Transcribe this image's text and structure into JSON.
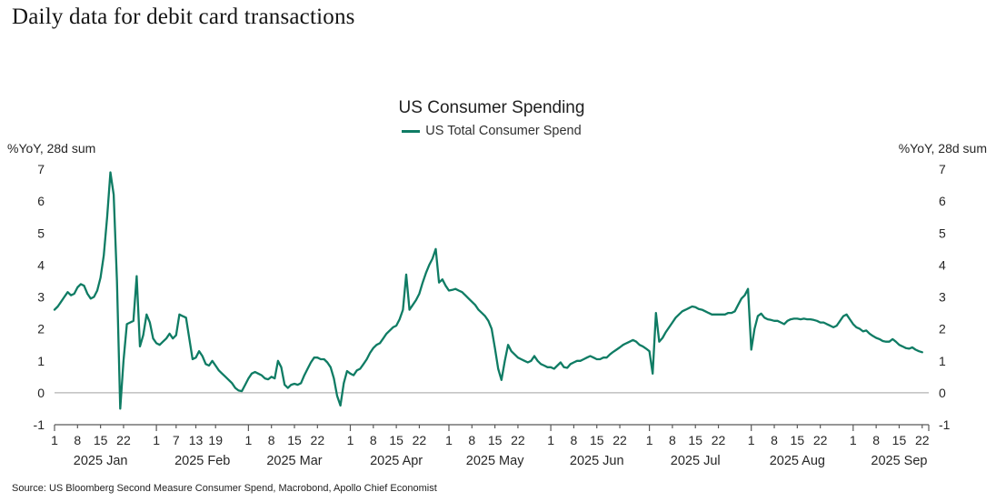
{
  "page": {
    "heading": "Daily data for debit card transactions",
    "source_note": "Source: US Bloomberg Second Measure Consumer Spend, Macrobond, Apollo Chief Economist"
  },
  "chart_data": {
    "type": "line",
    "title": "US Consumer Spending",
    "ylabel_left": "%YoY, 28d sum",
    "ylabel_right": "%YoY, 28d sum",
    "ylim": [
      -1,
      7
    ],
    "yticks": [
      7,
      6,
      5,
      4,
      3,
      2,
      1,
      0,
      -1
    ],
    "x_domain": [
      1,
      267
    ],
    "x_unit": "day-of-year 2025",
    "grid": "horizontal zero line only",
    "legend_position": "top-center",
    "colors": {
      "line": "#0f7c64",
      "zero_line": "#b3b3b3",
      "axis": "#595959",
      "text": "#262626"
    },
    "months": [
      {
        "label": "2025 Jan",
        "start": 1,
        "tick_days": [
          1,
          8,
          15,
          22
        ]
      },
      {
        "label": "2025 Feb",
        "start": 32,
        "tick_days": [
          1,
          7,
          13,
          19
        ]
      },
      {
        "label": "2025 Mar",
        "start": 60,
        "tick_days": [
          1,
          8,
          15,
          22
        ]
      },
      {
        "label": "2025 Apr",
        "start": 91,
        "tick_days": [
          1,
          8,
          15,
          22
        ]
      },
      {
        "label": "2025 May",
        "start": 121,
        "tick_days": [
          1,
          8,
          15,
          22
        ]
      },
      {
        "label": "2025 Jun",
        "start": 152,
        "tick_days": [
          1,
          8,
          15,
          22
        ]
      },
      {
        "label": "2025 Jul",
        "start": 182,
        "tick_days": [
          1,
          8,
          15,
          22
        ]
      },
      {
        "label": "2025 Aug",
        "start": 213,
        "tick_days": [
          1,
          8,
          15,
          22
        ]
      },
      {
        "label": "2025 Sep",
        "start": 244,
        "tick_days": [
          1,
          8,
          15,
          22
        ]
      }
    ],
    "series": [
      {
        "name": "US Total Consumer Spend",
        "color": "#0f7c64",
        "points": [
          [
            1,
            2.6
          ],
          [
            2,
            2.7
          ],
          [
            3,
            2.85
          ],
          [
            4,
            3.0
          ],
          [
            5,
            3.15
          ],
          [
            6,
            3.05
          ],
          [
            7,
            3.1
          ],
          [
            8,
            3.3
          ],
          [
            9,
            3.4
          ],
          [
            10,
            3.35
          ],
          [
            11,
            3.1
          ],
          [
            12,
            2.95
          ],
          [
            13,
            3.0
          ],
          [
            14,
            3.2
          ],
          [
            15,
            3.6
          ],
          [
            16,
            4.3
          ],
          [
            17,
            5.5
          ],
          [
            18,
            6.9
          ],
          [
            19,
            6.2
          ],
          [
            20,
            3.5
          ],
          [
            21,
            -0.5
          ],
          [
            22,
            1.0
          ],
          [
            23,
            2.15
          ],
          [
            24,
            2.2
          ],
          [
            25,
            2.25
          ],
          [
            26,
            3.65
          ],
          [
            27,
            1.45
          ],
          [
            28,
            1.8
          ],
          [
            29,
            2.45
          ],
          [
            30,
            2.2
          ],
          [
            31,
            1.7
          ],
          [
            32,
            1.55
          ],
          [
            33,
            1.5
          ],
          [
            34,
            1.6
          ],
          [
            35,
            1.7
          ],
          [
            36,
            1.85
          ],
          [
            37,
            1.7
          ],
          [
            38,
            1.8
          ],
          [
            39,
            2.45
          ],
          [
            40,
            2.4
          ],
          [
            41,
            2.35
          ],
          [
            42,
            1.7
          ],
          [
            43,
            1.05
          ],
          [
            44,
            1.1
          ],
          [
            45,
            1.3
          ],
          [
            46,
            1.15
          ],
          [
            47,
            0.9
          ],
          [
            48,
            0.85
          ],
          [
            49,
            1.0
          ],
          [
            50,
            0.85
          ],
          [
            51,
            0.7
          ],
          [
            52,
            0.6
          ],
          [
            53,
            0.5
          ],
          [
            54,
            0.4
          ],
          [
            55,
            0.3
          ],
          [
            56,
            0.15
          ],
          [
            57,
            0.07
          ],
          [
            58,
            0.05
          ],
          [
            59,
            0.25
          ],
          [
            60,
            0.45
          ],
          [
            61,
            0.6
          ],
          [
            62,
            0.65
          ],
          [
            63,
            0.6
          ],
          [
            64,
            0.55
          ],
          [
            65,
            0.45
          ],
          [
            66,
            0.42
          ],
          [
            67,
            0.5
          ],
          [
            68,
            0.45
          ],
          [
            69,
            1.0
          ],
          [
            70,
            0.8
          ],
          [
            71,
            0.25
          ],
          [
            72,
            0.15
          ],
          [
            73,
            0.25
          ],
          [
            74,
            0.28
          ],
          [
            75,
            0.25
          ],
          [
            76,
            0.3
          ],
          [
            77,
            0.55
          ],
          [
            78,
            0.75
          ],
          [
            79,
            0.95
          ],
          [
            80,
            1.1
          ],
          [
            81,
            1.1
          ],
          [
            82,
            1.05
          ],
          [
            83,
            1.05
          ],
          [
            84,
            0.95
          ],
          [
            85,
            0.8
          ],
          [
            86,
            0.45
          ],
          [
            87,
            -0.1
          ],
          [
            88,
            -0.4
          ],
          [
            89,
            0.3
          ],
          [
            90,
            0.68
          ],
          [
            91,
            0.6
          ],
          [
            92,
            0.55
          ],
          [
            93,
            0.7
          ],
          [
            94,
            0.75
          ],
          [
            95,
            0.9
          ],
          [
            96,
            1.05
          ],
          [
            97,
            1.25
          ],
          [
            98,
            1.4
          ],
          [
            99,
            1.5
          ],
          [
            100,
            1.55
          ],
          [
            101,
            1.7
          ],
          [
            102,
            1.85
          ],
          [
            103,
            1.95
          ],
          [
            104,
            2.05
          ],
          [
            105,
            2.1
          ],
          [
            106,
            2.3
          ],
          [
            107,
            2.6
          ],
          [
            108,
            3.7
          ],
          [
            109,
            2.6
          ],
          [
            110,
            2.75
          ],
          [
            111,
            2.9
          ],
          [
            112,
            3.1
          ],
          [
            113,
            3.45
          ],
          [
            114,
            3.75
          ],
          [
            115,
            4.0
          ],
          [
            116,
            4.2
          ],
          [
            117,
            4.5
          ],
          [
            118,
            3.45
          ],
          [
            119,
            3.55
          ],
          [
            120,
            3.35
          ],
          [
            121,
            3.2
          ],
          [
            122,
            3.22
          ],
          [
            123,
            3.25
          ],
          [
            124,
            3.2
          ],
          [
            125,
            3.15
          ],
          [
            126,
            3.05
          ],
          [
            127,
            2.95
          ],
          [
            128,
            2.85
          ],
          [
            129,
            2.75
          ],
          [
            130,
            2.6
          ],
          [
            131,
            2.5
          ],
          [
            132,
            2.4
          ],
          [
            133,
            2.25
          ],
          [
            134,
            2.0
          ],
          [
            135,
            1.4
          ],
          [
            136,
            0.75
          ],
          [
            137,
            0.4
          ],
          [
            138,
            1.0
          ],
          [
            139,
            1.5
          ],
          [
            140,
            1.3
          ],
          [
            141,
            1.2
          ],
          [
            142,
            1.1
          ],
          [
            143,
            1.05
          ],
          [
            144,
            1.0
          ],
          [
            145,
            0.95
          ],
          [
            146,
            1.0
          ],
          [
            147,
            1.15
          ],
          [
            148,
            1.0
          ],
          [
            149,
            0.9
          ],
          [
            150,
            0.85
          ],
          [
            151,
            0.8
          ],
          [
            152,
            0.8
          ],
          [
            153,
            0.75
          ],
          [
            154,
            0.85
          ],
          [
            155,
            0.95
          ],
          [
            156,
            0.8
          ],
          [
            157,
            0.78
          ],
          [
            158,
            0.9
          ],
          [
            159,
            0.95
          ],
          [
            160,
            1.0
          ],
          [
            161,
            1.0
          ],
          [
            162,
            1.05
          ],
          [
            163,
            1.1
          ],
          [
            164,
            1.15
          ],
          [
            165,
            1.1
          ],
          [
            166,
            1.05
          ],
          [
            167,
            1.05
          ],
          [
            168,
            1.1
          ],
          [
            169,
            1.1
          ],
          [
            170,
            1.2
          ],
          [
            171,
            1.28
          ],
          [
            172,
            1.35
          ],
          [
            173,
            1.42
          ],
          [
            174,
            1.5
          ],
          [
            175,
            1.55
          ],
          [
            176,
            1.6
          ],
          [
            177,
            1.65
          ],
          [
            178,
            1.6
          ],
          [
            179,
            1.5
          ],
          [
            180,
            1.45
          ],
          [
            181,
            1.38
          ],
          [
            182,
            1.3
          ],
          [
            183,
            0.6
          ],
          [
            184,
            2.5
          ],
          [
            185,
            1.6
          ],
          [
            186,
            1.72
          ],
          [
            187,
            1.9
          ],
          [
            188,
            2.05
          ],
          [
            189,
            2.2
          ],
          [
            190,
            2.35
          ],
          [
            191,
            2.45
          ],
          [
            192,
            2.55
          ],
          [
            193,
            2.6
          ],
          [
            194,
            2.65
          ],
          [
            195,
            2.7
          ],
          [
            196,
            2.68
          ],
          [
            197,
            2.62
          ],
          [
            198,
            2.6
          ],
          [
            199,
            2.55
          ],
          [
            200,
            2.5
          ],
          [
            201,
            2.45
          ],
          [
            202,
            2.45
          ],
          [
            203,
            2.45
          ],
          [
            204,
            2.45
          ],
          [
            205,
            2.45
          ],
          [
            206,
            2.5
          ],
          [
            207,
            2.5
          ],
          [
            208,
            2.55
          ],
          [
            209,
            2.75
          ],
          [
            210,
            2.95
          ],
          [
            211,
            3.05
          ],
          [
            212,
            3.25
          ],
          [
            213,
            1.35
          ],
          [
            214,
            2.0
          ],
          [
            215,
            2.4
          ],
          [
            216,
            2.48
          ],
          [
            217,
            2.35
          ],
          [
            218,
            2.3
          ],
          [
            219,
            2.28
          ],
          [
            220,
            2.25
          ],
          [
            221,
            2.25
          ],
          [
            222,
            2.2
          ],
          [
            223,
            2.15
          ],
          [
            224,
            2.25
          ],
          [
            225,
            2.3
          ],
          [
            226,
            2.32
          ],
          [
            227,
            2.32
          ],
          [
            228,
            2.3
          ],
          [
            229,
            2.32
          ],
          [
            230,
            2.3
          ],
          [
            231,
            2.3
          ],
          [
            232,
            2.28
          ],
          [
            233,
            2.25
          ],
          [
            234,
            2.2
          ],
          [
            235,
            2.2
          ],
          [
            236,
            2.15
          ],
          [
            237,
            2.1
          ],
          [
            238,
            2.05
          ],
          [
            239,
            2.1
          ],
          [
            240,
            2.25
          ],
          [
            241,
            2.4
          ],
          [
            242,
            2.45
          ],
          [
            243,
            2.3
          ],
          [
            244,
            2.15
          ],
          [
            245,
            2.05
          ],
          [
            246,
            2.0
          ],
          [
            247,
            1.92
          ],
          [
            248,
            1.95
          ],
          [
            249,
            1.85
          ],
          [
            250,
            1.78
          ],
          [
            251,
            1.72
          ],
          [
            252,
            1.68
          ],
          [
            253,
            1.62
          ],
          [
            254,
            1.6
          ],
          [
            255,
            1.6
          ],
          [
            256,
            1.68
          ],
          [
            257,
            1.6
          ],
          [
            258,
            1.5
          ],
          [
            259,
            1.45
          ],
          [
            260,
            1.4
          ],
          [
            261,
            1.38
          ],
          [
            262,
            1.42
          ],
          [
            263,
            1.35
          ],
          [
            264,
            1.3
          ],
          [
            265,
            1.27
          ]
        ]
      }
    ]
  }
}
